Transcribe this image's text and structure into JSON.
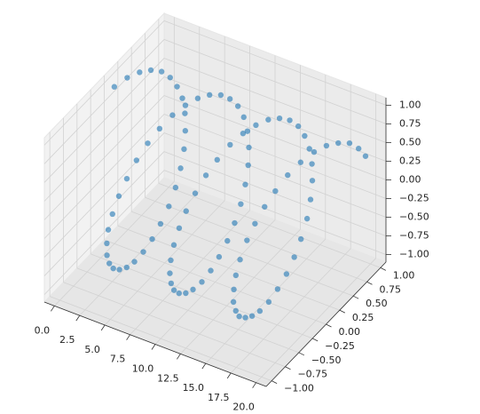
{
  "chart_data": {
    "type": "scatter3d",
    "color": "#1f77b4",
    "grid": true,
    "x": [
      0,
      0.2,
      0.4,
      0.6,
      0.8,
      1,
      1.2,
      1.4,
      1.6,
      1.8,
      2,
      2.2,
      2.4,
      2.6,
      2.8,
      3,
      3.2,
      3.4,
      3.6,
      3.8,
      4,
      4.2,
      4.4,
      4.6,
      4.8,
      5,
      5.2,
      5.4,
      5.6,
      5.8,
      6,
      6.2,
      6.4,
      6.6,
      6.8,
      7,
      7.2,
      7.4,
      7.6,
      7.8,
      8,
      8.2,
      8.4,
      8.6,
      8.8,
      9,
      9.2,
      9.4,
      9.6,
      9.8,
      10,
      10.2,
      10.4,
      10.6,
      10.8,
      11,
      11.2,
      11.4,
      11.6,
      11.8,
      12,
      12.2,
      12.4,
      12.6,
      12.8,
      13,
      13.2,
      13.4,
      13.6,
      13.8,
      14,
      14.2,
      14.4,
      14.6,
      14.8,
      15,
      15.2,
      15.4,
      15.6,
      15.8,
      16,
      16.2,
      16.4,
      16.6,
      16.8,
      17,
      17.2,
      17.4,
      17.6,
      17.8,
      18,
      18.2,
      18.4,
      18.6,
      18.8,
      19,
      19.2,
      19.4,
      19.6,
      19.8,
      20
    ],
    "y": [
      0,
      0.2,
      0.39,
      0.56,
      0.72,
      0.84,
      0.93,
      0.99,
      1,
      0.97,
      0.91,
      0.81,
      0.68,
      0.52,
      0.33,
      0.14,
      -0.06,
      -0.26,
      -0.44,
      -0.61,
      -0.76,
      -0.87,
      -0.95,
      -0.99,
      -1,
      -0.96,
      -0.88,
      -0.77,
      -0.63,
      -0.46,
      -0.28,
      -0.08,
      0.12,
      0.31,
      0.49,
      0.66,
      0.79,
      0.9,
      0.97,
      1,
      0.99,
      0.94,
      0.85,
      0.73,
      0.58,
      0.41,
      0.22,
      0.03,
      -0.17,
      -0.37,
      -0.54,
      -0.7,
      -0.83,
      -0.92,
      -0.98,
      -1,
      -0.98,
      -0.92,
      -0.83,
      -0.7,
      -0.54,
      -0.37,
      -0.17,
      0.03,
      0.23,
      0.42,
      0.59,
      0.74,
      0.86,
      0.94,
      0.99,
      1,
      0.97,
      0.9,
      0.8,
      0.65,
      0.49,
      0.31,
      0.11,
      -0.09,
      -0.29,
      -0.47,
      -0.63,
      -0.78,
      -0.88,
      -0.96,
      -0.99,
      -0.99,
      -0.95,
      -0.86,
      -0.75,
      -0.61,
      -0.45,
      -0.26,
      -0.06,
      0.15,
      0.34,
      0.52,
      0.69,
      0.82,
      0.91
    ],
    "z": [
      1,
      0.98,
      0.92,
      0.83,
      0.7,
      0.54,
      0.36,
      0.17,
      -0.03,
      -0.23,
      -0.42,
      -0.59,
      -0.74,
      -0.86,
      -0.94,
      -0.99,
      -1,
      -0.97,
      -0.9,
      -0.79,
      -0.65,
      -0.49,
      -0.31,
      -0.11,
      0.09,
      0.28,
      0.47,
      0.63,
      0.78,
      0.89,
      0.96,
      1,
      0.99,
      0.95,
      0.87,
      0.75,
      0.61,
      0.44,
      0.25,
      0.05,
      -0.15,
      -0.34,
      -0.52,
      -0.68,
      -0.81,
      -0.91,
      -0.97,
      -1,
      -0.99,
      -0.93,
      -0.84,
      -0.71,
      -0.56,
      -0.39,
      -0.2,
      0,
      0.2,
      0.39,
      0.56,
      0.71,
      0.84,
      0.93,
      0.99,
      1,
      0.97,
      0.91,
      0.81,
      0.68,
      0.52,
      0.34,
      0.14,
      -0.06,
      -0.25,
      -0.44,
      -0.61,
      -0.76,
      -0.87,
      -0.95,
      -0.99,
      -1,
      -0.96,
      -0.88,
      -0.77,
      -0.63,
      -0.47,
      -0.28,
      -0.08,
      0.12,
      0.31,
      0.51,
      0.66,
      0.79,
      0.89,
      0.97,
      1,
      0.99,
      0.94,
      0.85,
      0.73,
      0.57,
      0.41
    ],
    "xlim": [
      -1,
      21
    ],
    "ylim": [
      -1.1,
      1.1
    ],
    "zlim": [
      -1.1,
      1.1
    ],
    "xticks": [
      {
        "value": 0,
        "label": "0.0"
      },
      2.5,
      {
        "value": 5,
        "label": "5.0"
      },
      7.5,
      {
        "value": 10,
        "label": "10.0"
      },
      12.5,
      {
        "value": 15,
        "label": "15.0"
      },
      17.5,
      {
        "value": 20,
        "label": "20.0"
      }
    ],
    "yticks": [
      {
        "value": -1,
        "label": "−1.00"
      },
      {
        "value": -0.75,
        "label": "−0.75"
      },
      {
        "value": -0.5,
        "label": "−0.50"
      },
      {
        "value": -0.25,
        "label": "−0.25"
      },
      {
        "value": 0,
        "label": "0.00"
      },
      {
        "value": 0.25,
        "label": "0.25"
      },
      {
        "value": 0.5,
        "label": "0.50"
      },
      {
        "value": 0.75,
        "label": "0.75"
      },
      {
        "value": 1,
        "label": "1.00"
      }
    ],
    "zticks": [
      {
        "value": -1,
        "label": "−1.00"
      },
      {
        "value": -0.75,
        "label": "−0.75"
      },
      {
        "value": -0.5,
        "label": "−0.50"
      },
      {
        "value": -0.25,
        "label": "−0.25"
      },
      {
        "value": 0,
        "label": "0.00"
      },
      {
        "value": 0.25,
        "label": "0.25"
      },
      {
        "value": 0.5,
        "label": "0.50"
      },
      {
        "value": 0.75,
        "label": "0.75"
      },
      {
        "value": 1,
        "label": "1.00"
      }
    ]
  }
}
